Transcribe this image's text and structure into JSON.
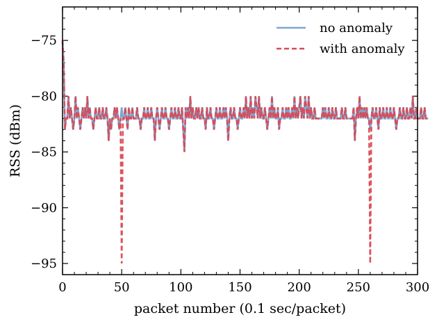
{
  "chart_data": {
    "type": "line",
    "title": "",
    "xlabel": "packet number (0.1 sec/packet)",
    "ylabel": "RSS (dBm)",
    "xlim": [
      0,
      300
    ],
    "ylim": [
      -96,
      -72
    ],
    "xticks": [
      0,
      50,
      100,
      150,
      200,
      250,
      300
    ],
    "yticks": [
      -95,
      -90,
      -85,
      -80,
      -75
    ],
    "xtick_labels": [
      "0",
      "50",
      "100",
      "150",
      "200",
      "250",
      "300"
    ],
    "ytick_labels": [
      "−95",
      "−90",
      "−85",
      "−80",
      "−75"
    ],
    "legend_position": "top-right",
    "series": [
      {
        "name": "no anomaly",
        "color": "#7ba7d4",
        "style": "solid",
        "values": [
          -75,
          -77,
          -83,
          -82,
          -82,
          -80,
          -82,
          -81,
          -82,
          -83,
          -82,
          -80,
          -82,
          -81,
          -82,
          -83,
          -82,
          -81,
          -82,
          -81,
          -82,
          -80,
          -82,
          -81,
          -82,
          -82,
          -83,
          -82,
          -81,
          -82,
          -82,
          -81,
          -82,
          -82,
          -81,
          -82,
          -82,
          -81,
          -82,
          -84,
          -82,
          -83,
          -82,
          -82,
          -81,
          -82,
          -81,
          -82,
          -83,
          -82,
          -81,
          -82,
          -82,
          -81,
          -82,
          -83,
          -81,
          -82,
          -82,
          -81,
          -82,
          -82,
          -82,
          -81,
          -82,
          -82,
          -83,
          -82,
          -82,
          -81,
          -82,
          -82,
          -81,
          -82,
          -82,
          -81,
          -82,
          -82,
          -84,
          -82,
          -81,
          -82,
          -83,
          -82,
          -81,
          -82,
          -82,
          -81,
          -82,
          -82,
          -83,
          -82,
          -81,
          -82,
          -82,
          -81,
          -82,
          -82,
          -81,
          -82,
          -82,
          -81,
          -83,
          -85,
          -81,
          -82,
          -81,
          -82,
          -80,
          -82,
          -81,
          -82,
          -82,
          -81,
          -82,
          -81,
          -82,
          -82,
          -81,
          -82,
          -82,
          -83,
          -81,
          -82,
          -82,
          -81,
          -82,
          -82,
          -83,
          -82,
          -81,
          -82,
          -82,
          -81,
          -82,
          -82,
          -81,
          -82,
          -81,
          -82,
          -84,
          -82,
          -81,
          -82,
          -82,
          -81,
          -82,
          -82,
          -83,
          -82,
          -81,
          -82,
          -82,
          -81,
          -82,
          -80,
          -82,
          -81,
          -82,
          -80,
          -82,
          -81,
          -82,
          -80,
          -81,
          -82,
          -80,
          -82,
          -81,
          -82,
          -82,
          -81,
          -82,
          -83,
          -82,
          -81,
          -82,
          -80,
          -82,
          -81,
          -82,
          -82,
          -81,
          -83,
          -82,
          -82,
          -81,
          -82,
          -82,
          -81,
          -82,
          -81,
          -82,
          -82,
          -81,
          -82,
          -80,
          -82,
          -81,
          -82,
          -81,
          -80,
          -82,
          -81,
          -82,
          -80,
          -81,
          -82,
          -80,
          -82,
          -81,
          -82,
          -82,
          -81,
          -82,
          -82,
          -82,
          -82,
          -82,
          -82,
          -81,
          -82,
          -81,
          -82,
          -82,
          -81,
          -82,
          -82,
          -81,
          -82,
          -82,
          -81,
          -82,
          -82,
          -82,
          -82,
          -81,
          -82,
          -82,
          -81,
          -82,
          -82,
          -82,
          -82,
          -82,
          -82,
          -81,
          -84,
          -82,
          -81,
          -82,
          -80,
          -82,
          -81,
          -82,
          -81,
          -82,
          -81,
          -82,
          -82,
          -83,
          -82,
          -81,
          -82,
          -82,
          -81,
          -82,
          -83,
          -81,
          -82,
          -82,
          -81,
          -82,
          -82,
          -81,
          -82,
          -82,
          -81,
          -82,
          -82,
          -81,
          -82,
          -83,
          -82,
          -82,
          -81,
          -82,
          -82,
          -81,
          -82,
          -82,
          -81,
          -82,
          -82,
          -81,
          -82,
          -80,
          -82,
          -82,
          -81,
          -82,
          -82,
          -82,
          -81,
          -82,
          -82,
          -81,
          -82,
          -82,
          -82
        ]
      },
      {
        "name": "with anomaly",
        "color": "#d94a55",
        "style": "dashed",
        "values": [
          -75,
          -77,
          -83,
          -82,
          -82,
          -80,
          -82,
          -81,
          -82,
          -83,
          -82,
          -80,
          -82,
          -81,
          -82,
          -83,
          -82,
          -81,
          -82,
          -81,
          -82,
          -80,
          -82,
          -81,
          -82,
          -82,
          -83,
          -82,
          -81,
          -82,
          -82,
          -81,
          -82,
          -82,
          -81,
          -82,
          -82,
          -81,
          -82,
          -84,
          -82,
          -83,
          -82,
          -82,
          -81,
          -82,
          -81,
          -82,
          -83,
          -82,
          -95,
          -82,
          -82,
          -81,
          -82,
          -83,
          -81,
          -82,
          -82,
          -81,
          -82,
          -82,
          -82,
          -81,
          -82,
          -82,
          -83,
          -82,
          -82,
          -81,
          -82,
          -82,
          -81,
          -82,
          -82,
          -81,
          -82,
          -82,
          -84,
          -82,
          -81,
          -82,
          -83,
          -82,
          -81,
          -82,
          -82,
          -81,
          -82,
          -82,
          -83,
          -82,
          -81,
          -82,
          -82,
          -81,
          -82,
          -82,
          -81,
          -82,
          -82,
          -81,
          -83,
          -85,
          -81,
          -82,
          -81,
          -82,
          -80,
          -82,
          -81,
          -82,
          -82,
          -81,
          -82,
          -81,
          -82,
          -82,
          -81,
          -82,
          -82,
          -83,
          -81,
          -82,
          -82,
          -81,
          -82,
          -82,
          -83,
          -82,
          -81,
          -82,
          -82,
          -81,
          -82,
          -82,
          -81,
          -82,
          -81,
          -82,
          -84,
          -82,
          -81,
          -82,
          -82,
          -81,
          -82,
          -82,
          -83,
          -82,
          -81,
          -82,
          -82,
          -81,
          -82,
          -80,
          -82,
          -81,
          -82,
          -80,
          -82,
          -81,
          -82,
          -80,
          -81,
          -82,
          -80,
          -82,
          -81,
          -82,
          -82,
          -81,
          -82,
          -83,
          -82,
          -81,
          -82,
          -80,
          -82,
          -81,
          -82,
          -82,
          -81,
          -83,
          -82,
          -82,
          -81,
          -82,
          -82,
          -81,
          -82,
          -81,
          -82,
          -82,
          -81,
          -82,
          -80,
          -82,
          -81,
          -82,
          -81,
          -80,
          -82,
          -81,
          -82,
          -80,
          -81,
          -82,
          -80,
          -82,
          -81,
          -82,
          -82,
          -81,
          -82,
          -82,
          -82,
          -82,
          -82,
          -82,
          -81,
          -82,
          -81,
          -82,
          -82,
          -81,
          -82,
          -82,
          -81,
          -82,
          -82,
          -81,
          -82,
          -82,
          -82,
          -82,
          -81,
          -82,
          -82,
          -81,
          -82,
          -82,
          -82,
          -82,
          -82,
          -82,
          -81,
          -84,
          -82,
          -81,
          -82,
          -80,
          -82,
          -81,
          -82,
          -81,
          -82,
          -81,
          -82,
          -82,
          -95,
          -82,
          -81,
          -82,
          -82,
          -81,
          -82,
          -83,
          -81,
          -82,
          -82,
          -81,
          -82,
          -82,
          -81,
          -82,
          -82,
          -81,
          -82,
          -82,
          -81,
          -82,
          -83,
          -82,
          -82,
          -81,
          -82,
          -82,
          -81,
          -82,
          -82,
          -81,
          -82,
          -82,
          -81,
          -82,
          -80,
          -82,
          -82,
          -81,
          -82,
          -82,
          -82,
          -81,
          -82,
          -82,
          -81,
          -82,
          -82,
          -82
        ]
      }
    ]
  }
}
